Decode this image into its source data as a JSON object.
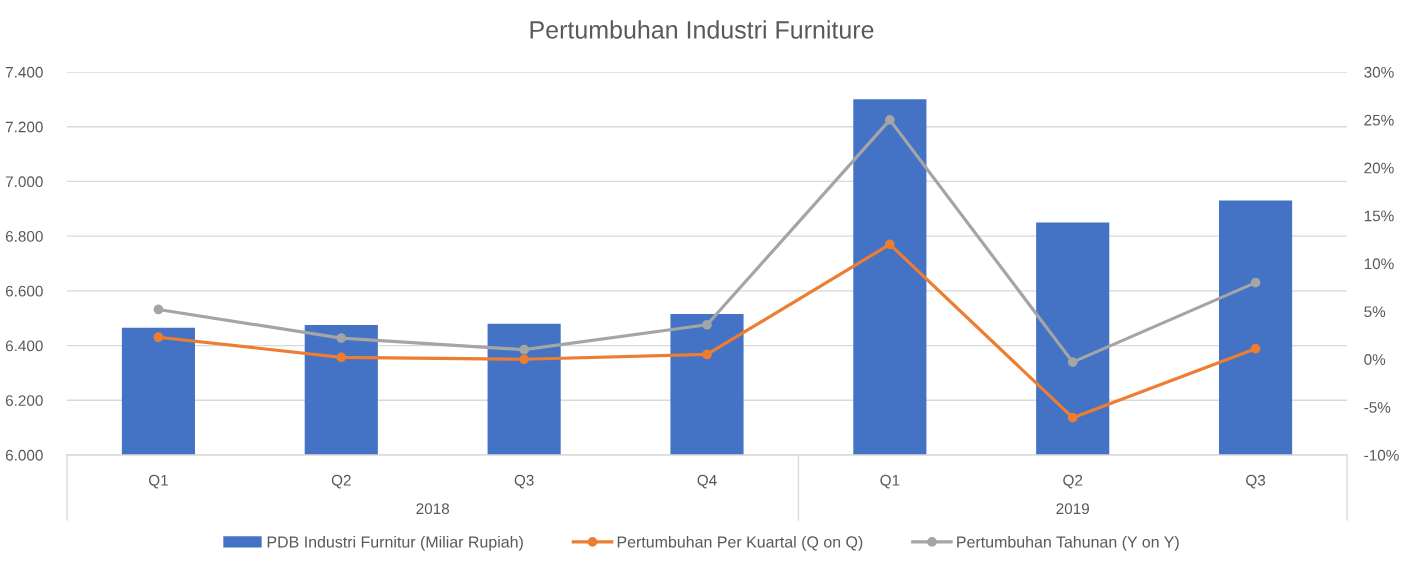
{
  "chart_data": {
    "type": "bar",
    "title": "Pertumbuhan Industri Furniture",
    "categories": [
      "Q1",
      "Q2",
      "Q3",
      "Q4",
      "Q1",
      "Q2",
      "Q3"
    ],
    "series": [
      {
        "name": "PDB Industri Furnitur (Miliar Rupiah)",
        "color": "#4472c4",
        "values": [
          6465,
          6475,
          6480,
          6515,
          7300,
          6850,
          6930
        ]
      },
      {
        "name": "Pertumbuhan Per Kuartal (Q on Q)",
        "type": "line",
        "axis": "y2",
        "color": "#ed7d31",
        "values": [
          2.3,
          0.2,
          0.0,
          0.5,
          12.0,
          -6.1,
          1.1
        ]
      },
      {
        "name": "Pertumbuhan Tahunan (Y on Y)",
        "type": "line",
        "axis": "y2",
        "color": "#a5a5a5",
        "values": [
          5.2,
          2.2,
          1.0,
          3.6,
          25.0,
          -0.3,
          8.0
        ]
      }
    ],
    "annotations": [
      "2018",
      "2019"
    ],
    "ylim": [
      6000,
      7400
    ],
    "yticks": [
      {
        "value": 6000,
        "label": "6.000"
      },
      {
        "value": 6200,
        "label": "6.200"
      },
      {
        "value": 6400,
        "label": "6.400"
      },
      {
        "value": 6600,
        "label": "6.600"
      },
      {
        "value": 6800,
        "label": "6.800"
      },
      {
        "value": 7000,
        "label": "7.000"
      },
      {
        "value": 7200,
        "label": "7.200"
      },
      {
        "value": 7400,
        "label": "7.400"
      }
    ],
    "y2lim": [
      -10,
      30
    ],
    "y2ticks": [
      {
        "value": -10,
        "label": "-10%"
      },
      {
        "value": -5,
        "label": "-5%"
      },
      {
        "value": 0,
        "label": "0%"
      },
      {
        "value": 5,
        "label": "5%"
      },
      {
        "value": 10,
        "label": "10%"
      },
      {
        "value": 15,
        "label": "15%"
      },
      {
        "value": 20,
        "label": "20%"
      },
      {
        "value": 25,
        "label": "25%"
      },
      {
        "value": 30,
        "label": "30%"
      }
    ],
    "grid": "y",
    "legend": "bottom",
    "marker": "circle",
    "line_style": "solid"
  }
}
